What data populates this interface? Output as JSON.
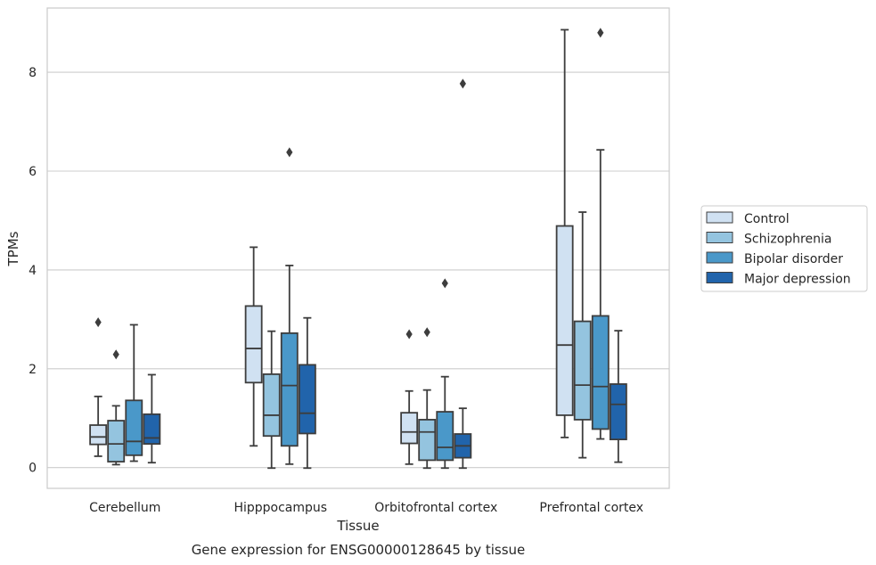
{
  "caption": "Gene expression for ENSG00000128645 by tissue",
  "chart_data": {
    "type": "box",
    "xlabel": "Tissue",
    "ylabel": "TPMs",
    "ylim": [
      -0.42,
      9.3
    ],
    "yticks": [
      0,
      2,
      4,
      6,
      8
    ],
    "grid": "horizontal",
    "legend_position": "right",
    "categories": [
      "Cerebellum",
      "Hipppocampus",
      "Orbitofrontal cortex",
      "Prefrontal cortex"
    ],
    "series": [
      {
        "name": "Control",
        "color": "#d0e1f2",
        "boxes": [
          {
            "whislo": 0.23,
            "q1": 0.47,
            "med": 0.62,
            "q3": 0.86,
            "whishi": 1.44,
            "fliers": [
              2.94
            ]
          },
          {
            "whislo": 0.44,
            "q1": 1.72,
            "med": 2.41,
            "q3": 3.27,
            "whishi": 4.46,
            "fliers": []
          },
          {
            "whislo": 0.07,
            "q1": 0.49,
            "med": 0.72,
            "q3": 1.11,
            "whishi": 1.55,
            "fliers": [
              2.7
            ]
          },
          {
            "whislo": 0.61,
            "q1": 1.06,
            "med": 2.48,
            "q3": 4.89,
            "whishi": 8.86,
            "fliers": []
          }
        ]
      },
      {
        "name": "Schizophrenia",
        "color": "#94c4df",
        "boxes": [
          {
            "whislo": 0.06,
            "q1": 0.12,
            "med": 0.48,
            "q3": 0.95,
            "whishi": 1.25,
            "fliers": [
              2.29
            ]
          },
          {
            "whislo": -0.01,
            "q1": 0.64,
            "med": 1.06,
            "q3": 1.89,
            "whishi": 2.76,
            "fliers": []
          },
          {
            "whislo": -0.01,
            "q1": 0.15,
            "med": 0.72,
            "q3": 0.97,
            "whishi": 1.57,
            "fliers": [
              2.74
            ]
          },
          {
            "whislo": 0.2,
            "q1": 0.97,
            "med": 1.67,
            "q3": 2.96,
            "whishi": 5.17,
            "fliers": []
          }
        ]
      },
      {
        "name": "Bipolar disorder",
        "color": "#4a98c9",
        "boxes": [
          {
            "whislo": 0.13,
            "q1": 0.25,
            "med": 0.53,
            "q3": 1.36,
            "whishi": 2.89,
            "fliers": []
          },
          {
            "whislo": 0.07,
            "q1": 0.44,
            "med": 1.66,
            "q3": 2.72,
            "whishi": 4.09,
            "fliers": [
              6.38
            ]
          },
          {
            "whislo": -0.01,
            "q1": 0.15,
            "med": 0.41,
            "q3": 1.13,
            "whishi": 1.84,
            "fliers": [
              3.73
            ]
          },
          {
            "whislo": 0.58,
            "q1": 0.78,
            "med": 1.64,
            "q3": 3.07,
            "whishi": 6.43,
            "fliers": [
              8.8
            ]
          }
        ]
      },
      {
        "name": "Major depression",
        "color": "#2164ab",
        "boxes": [
          {
            "whislo": 0.1,
            "q1": 0.48,
            "med": 0.6,
            "q3": 1.08,
            "whishi": 1.88,
            "fliers": []
          },
          {
            "whislo": -0.01,
            "q1": 0.69,
            "med": 1.1,
            "q3": 2.08,
            "whishi": 3.03,
            "fliers": []
          },
          {
            "whislo": -0.01,
            "q1": 0.2,
            "med": 0.44,
            "q3": 0.68,
            "whishi": 1.2,
            "fliers": [
              7.77
            ]
          },
          {
            "whislo": 0.11,
            "q1": 0.57,
            "med": 1.28,
            "q3": 1.69,
            "whishi": 2.77,
            "fliers": []
          }
        ]
      }
    ]
  }
}
